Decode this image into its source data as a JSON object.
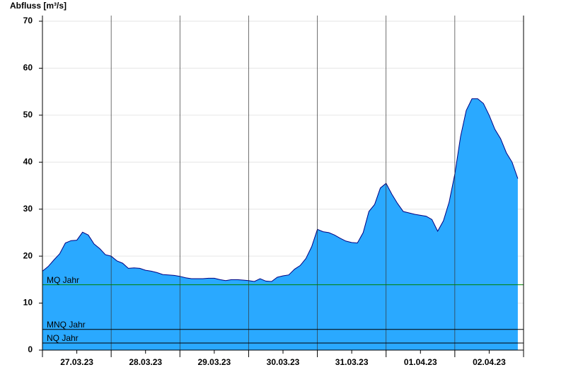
{
  "chart_data": {
    "type": "area",
    "y_label": "Abfluss [m³/s]",
    "categories": [
      "27.03.23",
      "28.03.23",
      "29.03.23",
      "30.03.23",
      "31.03.23",
      "01.04.23",
      "02.04.23"
    ],
    "values": [
      [
        16.8,
        17.8,
        19.2,
        20.5,
        22.8,
        23.3,
        23.4,
        25.1,
        24.5,
        22.6,
        21.6,
        20.3
      ],
      [
        20.0,
        19.0,
        18.5,
        17.4,
        17.5,
        17.4,
        17.0,
        16.8,
        16.5,
        16.1,
        16.0,
        15.9
      ],
      [
        15.7,
        15.4,
        15.2,
        15.2,
        15.2,
        15.3,
        15.3,
        15.0,
        14.8,
        15.0,
        15.0,
        14.9
      ],
      [
        14.8,
        14.6,
        15.2,
        14.7,
        14.6,
        15.5,
        15.8,
        16.0,
        17.2,
        18.0,
        19.5,
        22.0
      ],
      [
        25.7,
        25.2,
        25.0,
        24.5,
        23.8,
        23.2,
        22.9,
        22.8,
        25.0,
        29.5,
        31.0,
        34.5
      ],
      [
        35.5,
        33.2,
        31.2,
        29.5,
        29.2,
        28.9,
        28.7,
        28.5,
        27.8,
        25.3,
        27.5,
        31.5
      ],
      [
        37.5,
        45.5,
        51.0,
        53.5,
        53.5,
        52.5,
        50.0,
        47.0,
        45.0,
        42.0,
        40.0,
        36.5
      ]
    ],
    "color": "#2aa9ff",
    "line_color": "#000080",
    "ylim": [
      0,
      70
    ],
    "yticks": [
      0,
      10,
      20,
      30,
      40,
      50,
      60,
      70
    ],
    "grid": true,
    "reference_lines": [
      {
        "label": "MQ Jahr",
        "value": 13.9,
        "color": "#008000"
      },
      {
        "label": "MNQ Jahr",
        "value": 4.4,
        "color": "#000000"
      },
      {
        "label": "NQ Jahr",
        "value": 1.5,
        "color": "#000000"
      }
    ]
  }
}
